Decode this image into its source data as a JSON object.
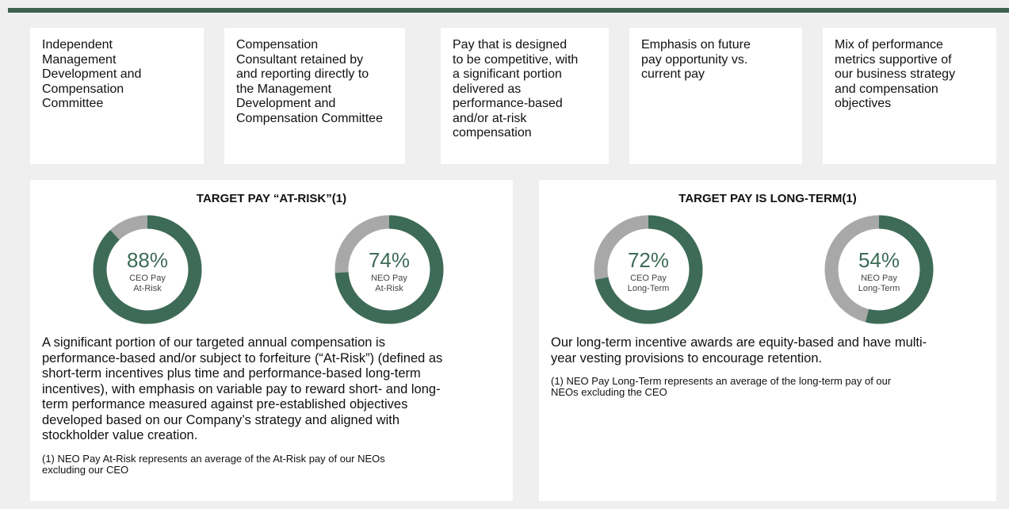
{
  "boxes": [
    {
      "lines": [
        "Independent",
        "Management",
        "Development and",
        "Compensation",
        "Committee"
      ]
    },
    {
      "lines": [
        "Compensation",
        "Consultant retained by",
        "and reporting directly to",
        "the Management",
        "Development and",
        "Compensation Committee"
      ]
    },
    {
      "lines": [
        "Pay that is designed",
        "to be competitive, with",
        "a significant portion",
        "delivered as",
        "performance-based",
        "and/or at-risk",
        "compensation"
      ]
    },
    {
      "lines": [
        "Emphasis on future",
        "pay opportunity vs.",
        "current pay"
      ]
    },
    {
      "lines": [
        "Mix of performance",
        "metrics supportive of",
        "our business strategy",
        "and compensation",
        "objectives"
      ]
    }
  ],
  "panels": [
    {
      "title": "TARGET PAY “AT-RISK”(1)",
      "donuts": [
        {
          "value": 88,
          "value_label": "88%",
          "label_lines": [
            "CEO Pay",
            "At-Risk"
          ]
        },
        {
          "value": 74,
          "value_label": "74%",
          "label_lines": [
            "NEO Pay",
            "At-Risk"
          ]
        }
      ],
      "paragraph": [
        "A significant portion of our targeted annual compensation is",
        "performance-based and/or subject to forfeiture (“At-Risk”) (defined as",
        "short-term incentives plus time and performance-based long-term",
        "incentives), with emphasis on variable pay to reward short- and long-",
        "term performance measured against pre-established objectives",
        "developed based on our Company’s strategy and aligned with",
        "stockholder value creation."
      ],
      "footnote": [
        "(1) NEO Pay At-Risk represents an average of the At-Risk pay of our NEOs",
        "excluding our CEO"
      ]
    },
    {
      "title": "TARGET PAY IS LONG-TERM(1)",
      "donuts": [
        {
          "value": 72,
          "value_label": "72%",
          "label_lines": [
            "CEO Pay",
            "Long-Term"
          ]
        },
        {
          "value": 54,
          "value_label": "54%",
          "label_lines": [
            "NEO Pay",
            "Long-Term"
          ]
        }
      ],
      "paragraph": [
        "Our long-term incentive awards are equity-based and have multi-",
        "year vesting provisions to encourage retention."
      ],
      "footnote": [
        "(1) NEO Pay Long-Term represents an average of the long-term pay of our",
        "NEOs excluding the CEO"
      ]
    }
  ]
}
